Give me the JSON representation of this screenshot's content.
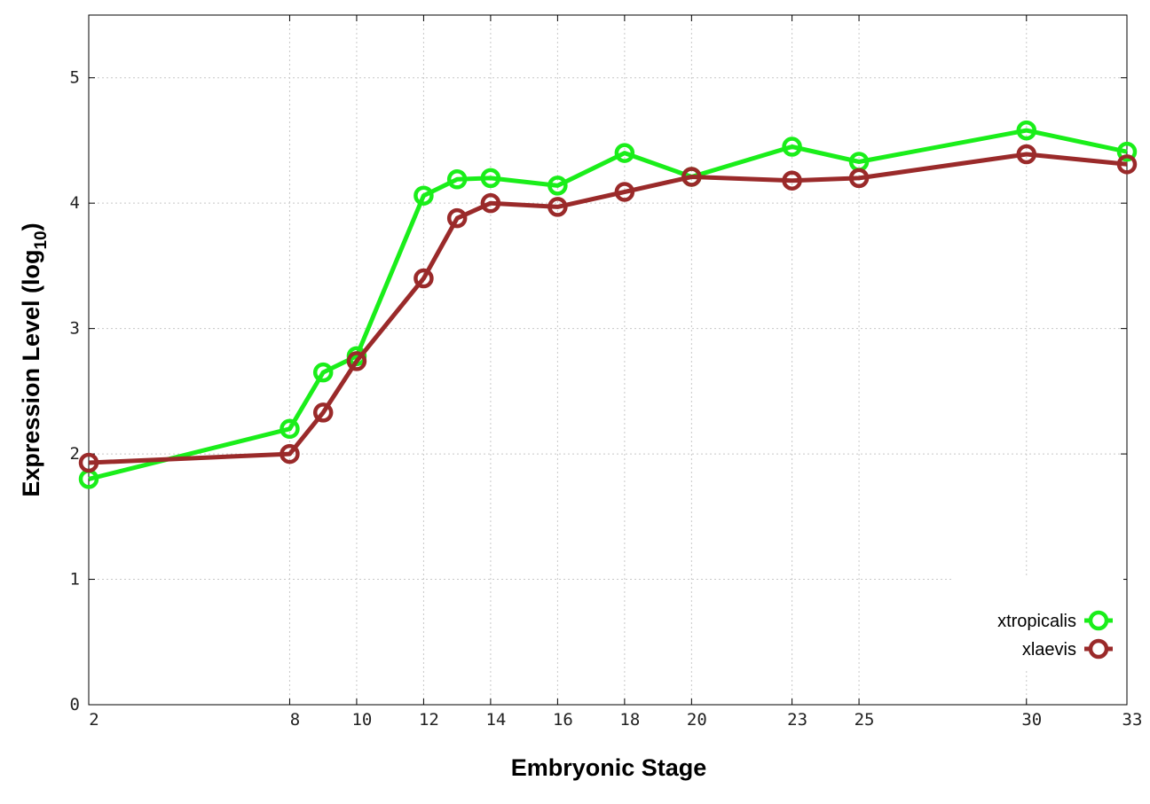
{
  "chart_data": {
    "type": "line",
    "title": "",
    "xlabel": "Embryonic Stage",
    "ylabel_main": "Expression Level (log",
    "ylabel_sub": "10",
    "ylabel_close": ")",
    "x": [
      2,
      8,
      9,
      10,
      12,
      13,
      14,
      16,
      18,
      20,
      23,
      25,
      30,
      33
    ],
    "xticks": [
      "2",
      "8",
      "10",
      "12",
      "14",
      "16",
      "18",
      "20",
      "23",
      "25",
      "30",
      "33"
    ],
    "yticks": [
      "0",
      "1",
      "2",
      "3",
      "4",
      "5"
    ],
    "xlim": [
      2,
      33
    ],
    "ylim": [
      0,
      5.5
    ],
    "grid": true,
    "legend_position": "bottom-right",
    "series": [
      {
        "name": "xtropicalis",
        "color": "#1aee1a",
        "values": [
          1.8,
          2.2,
          2.65,
          2.78,
          4.06,
          4.19,
          4.2,
          4.14,
          4.4,
          4.21,
          4.45,
          4.33,
          4.58,
          4.41
        ]
      },
      {
        "name": "xlaevis",
        "color": "#9a2a2a",
        "values": [
          1.93,
          2.0,
          2.33,
          2.74,
          3.4,
          3.88,
          4.0,
          3.97,
          4.09,
          4.21,
          4.18,
          4.2,
          4.39,
          4.31
        ]
      }
    ]
  }
}
